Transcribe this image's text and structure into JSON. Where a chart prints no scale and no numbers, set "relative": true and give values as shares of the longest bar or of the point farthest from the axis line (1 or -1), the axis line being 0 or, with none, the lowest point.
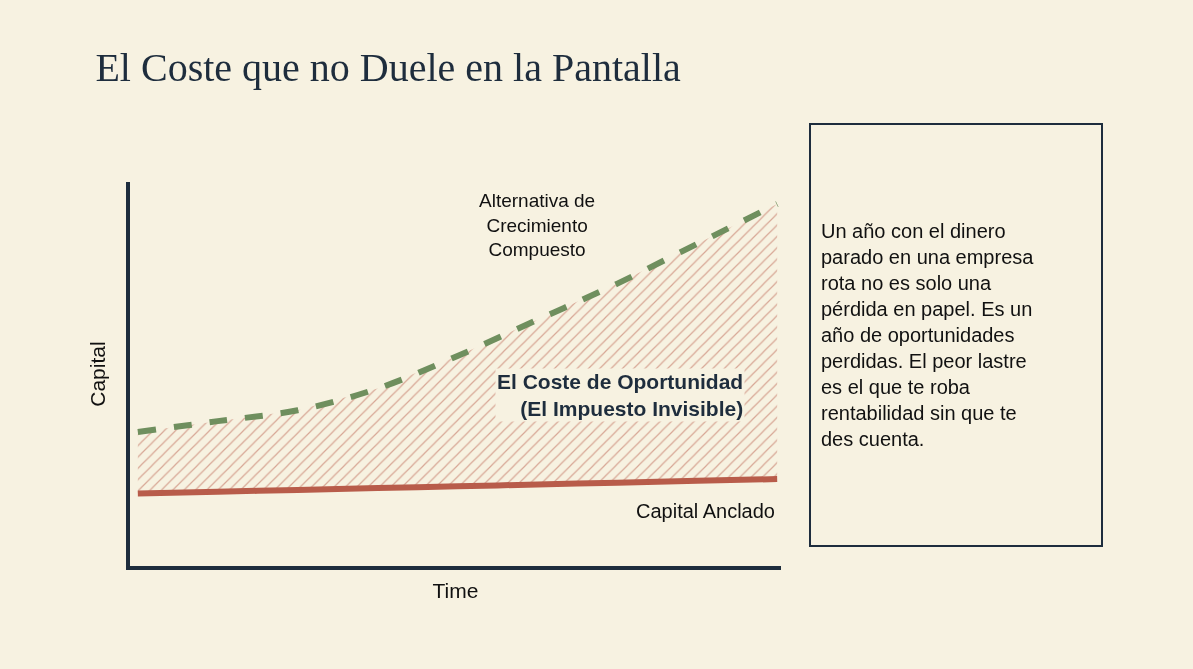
{
  "chart_data": {
    "type": "line",
    "title": "El Coste que no Duele en la Pantalla",
    "xlabel": "Time",
    "ylabel": "Capital",
    "relative": true,
    "legend": false,
    "grid": false,
    "marker": "none",
    "categories": [
      null,
      null,
      null,
      null,
      null,
      null,
      null,
      null,
      null
    ],
    "series": [
      {
        "name": "Capital Anclado",
        "color": "#b85c4a",
        "line_style": "solid",
        "values": [
          0.2,
          0.205,
          0.21,
          0.215,
          0.22,
          0.225,
          0.23,
          0.235,
          0.24
        ]
      },
      {
        "name": "Alternativa de Crecimiento Compuesto",
        "color": "#6f8f5e",
        "line_style": "dashed",
        "values": [
          0.37,
          0.4,
          0.43,
          0.49,
          0.58,
          0.68,
          0.78,
          0.89,
          1.0
        ],
        "lower": [
          0.2,
          0.205,
          0.21,
          0.215,
          0.22,
          0.225,
          0.23,
          0.235,
          0.24
        ],
        "upper": [
          0.37,
          0.4,
          0.43,
          0.49,
          0.58,
          0.68,
          0.78,
          0.89,
          1.0
        ]
      }
    ],
    "annotations": [
      "El Coste de Oportunidad (El Impuesto Invisible)",
      "Un año con el dinero parado en una empresa rota no es solo una pérdida en papel. Es un año de oportunidades perdidas. El peor lastre es el que te roba rentabilidad sin que te des cuenta."
    ]
  }
}
